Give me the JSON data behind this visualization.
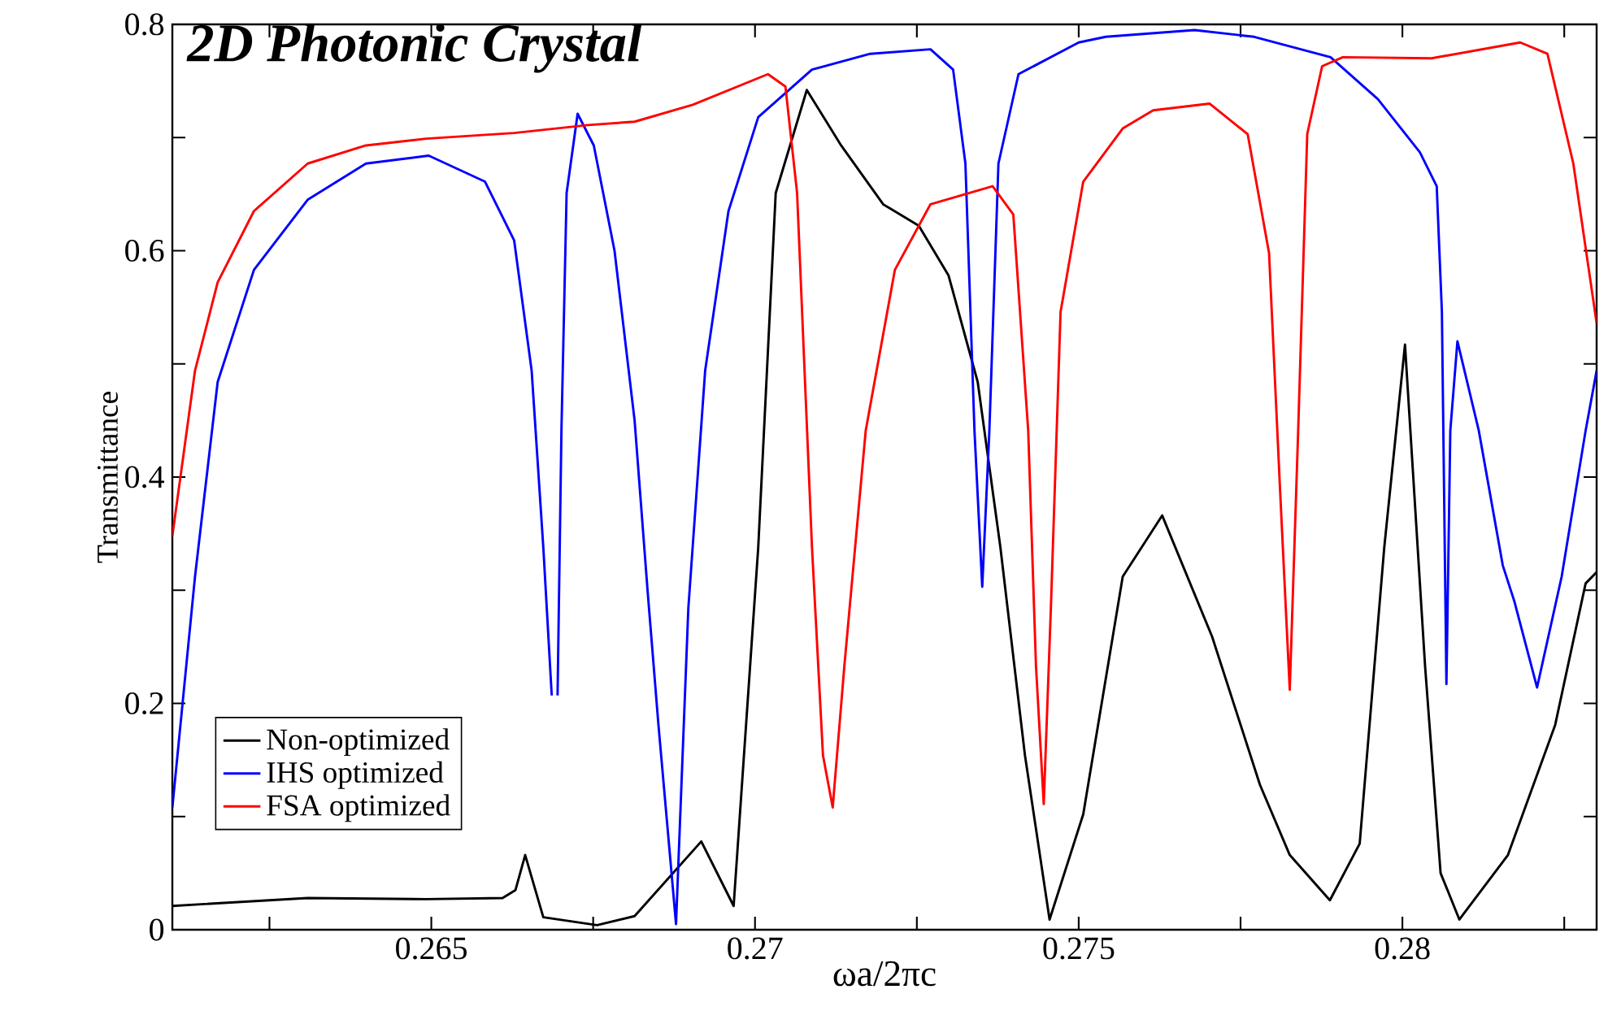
{
  "chart_data": {
    "type": "line",
    "title": "2D Photonic Crystal",
    "xlabel": "ωa/2πc",
    "ylabel": "Transmittance",
    "xlim": [
      0.261,
      0.283
    ],
    "ylim": [
      0,
      0.8
    ],
    "xticks": [
      {
        "value": 0.2625,
        "label": null
      },
      0.265,
      {
        "value": 0.2675,
        "label": null
      },
      0.27,
      {
        "value": 0.2725,
        "label": null
      },
      0.275,
      {
        "value": 0.2775,
        "label": null
      },
      0.28,
      {
        "value": 0.2825,
        "label": null
      }
    ],
    "yticks": [
      0,
      {
        "value": 0.1,
        "label": null
      },
      0.2,
      {
        "value": 0.3,
        "label": null
      },
      0.4,
      {
        "value": 0.5,
        "label": null
      },
      0.6,
      {
        "value": 0.7,
        "label": null
      },
      0.8
    ],
    "legend": "bottom left",
    "grid": false,
    "series": [
      {
        "name": "Non-optimized",
        "color": "#000000",
        "x": [
          0.261,
          0.26309,
          0.26492,
          0.2661,
          0.2663,
          0.26645,
          0.26673,
          0.26756,
          0.26814,
          0.26917,
          0.26967,
          0.27005,
          0.27032,
          0.2708,
          0.27133,
          0.27198,
          0.27253,
          0.27299,
          0.27344,
          0.27379,
          0.27417,
          0.27455,
          0.27507,
          0.27568,
          0.27629,
          0.27706,
          0.2778,
          0.27826,
          0.27888,
          0.27934,
          0.27972,
          0.28004,
          0.28035,
          0.28059,
          0.28088,
          0.28163,
          0.28236,
          0.28283,
          0.283
        ],
        "values": [
          0.021,
          0.028,
          0.027,
          0.028,
          0.035,
          0.066,
          0.011,
          0.004,
          0.012,
          0.078,
          0.021,
          0.338,
          0.651,
          0.742,
          0.693,
          0.641,
          0.622,
          0.578,
          0.484,
          0.338,
          0.154,
          0.009,
          0.102,
          0.312,
          0.366,
          0.259,
          0.128,
          0.066,
          0.026,
          0.076,
          0.338,
          0.517,
          0.233,
          0.05,
          0.009,
          0.066,
          0.181,
          0.306,
          0.316
        ]
      },
      {
        "name": "IHS optimized",
        "color": "#0000ff",
        "x": [
          0.261,
          0.26135,
          0.2617,
          0.26226,
          0.26309,
          0.26399,
          0.26496,
          0.26583,
          0.26628,
          0.26655,
          0.26673,
          0.26686,
          0.2669,
          0.26695,
          0.26701,
          0.26709,
          0.26726,
          0.26751,
          0.26783,
          0.26814,
          0.26834,
          0.26851,
          0.26878,
          0.26897,
          0.26923,
          0.26959,
          0.27005,
          0.27088,
          0.27178,
          0.27271,
          0.27306,
          0.27325,
          0.27339,
          0.27351,
          0.27362,
          0.27376,
          0.27407,
          0.275,
          0.27542,
          0.27679,
          0.27771,
          0.27889,
          0.27962,
          0.28027,
          0.28053,
          0.28061,
          0.28068,
          0.28074,
          0.28085,
          0.28118,
          0.28155,
          0.28173,
          0.28208,
          0.28246,
          0.28283,
          0.283
        ],
        "values": [
          0.108,
          0.312,
          0.484,
          0.583,
          0.645,
          0.677,
          0.684,
          0.661,
          0.609,
          0.494,
          0.338,
          0.207,
          null,
          0.207,
          0.441,
          0.651,
          0.721,
          0.693,
          0.6,
          0.45,
          0.3,
          0.18,
          0.005,
          0.284,
          0.494,
          0.635,
          0.718,
          0.76,
          0.774,
          0.778,
          0.76,
          0.677,
          0.441,
          0.303,
          0.441,
          0.677,
          0.756,
          0.784,
          0.789,
          0.795,
          0.789,
          0.771,
          0.734,
          0.687,
          0.657,
          0.546,
          0.217,
          0.441,
          0.52,
          0.441,
          0.322,
          0.29,
          0.214,
          0.312,
          0.441,
          0.494
        ]
      },
      {
        "name": "FSA optimized",
        "color": "#ff0000",
        "x": [
          0.261,
          0.26135,
          0.2617,
          0.26226,
          0.26309,
          0.26399,
          0.26492,
          0.26628,
          0.26742,
          0.26814,
          0.26904,
          0.2702,
          0.27047,
          0.27065,
          0.27088,
          0.27105,
          0.2712,
          0.27138,
          0.27171,
          0.27216,
          0.27271,
          0.27367,
          0.27399,
          0.27422,
          0.27434,
          0.27446,
          0.27457,
          0.27472,
          0.27507,
          0.27568,
          0.27615,
          0.27702,
          0.27761,
          0.27794,
          0.27811,
          0.27826,
          0.27839,
          0.27853,
          0.27876,
          0.27908,
          0.28045,
          0.28182,
          0.28224,
          0.28264,
          0.283
        ],
        "values": [
          0.348,
          0.494,
          0.572,
          0.635,
          0.677,
          0.693,
          0.699,
          0.704,
          0.711,
          0.714,
          0.729,
          0.756,
          0.745,
          0.651,
          0.338,
          0.154,
          0.108,
          0.233,
          0.441,
          0.583,
          0.641,
          0.657,
          0.632,
          0.441,
          0.233,
          0.111,
          0.284,
          0.546,
          0.661,
          0.708,
          0.724,
          0.73,
          0.703,
          0.598,
          0.389,
          0.212,
          0.441,
          0.703,
          0.763,
          0.771,
          0.77,
          0.784,
          0.774,
          0.677,
          0.536
        ]
      }
    ]
  }
}
